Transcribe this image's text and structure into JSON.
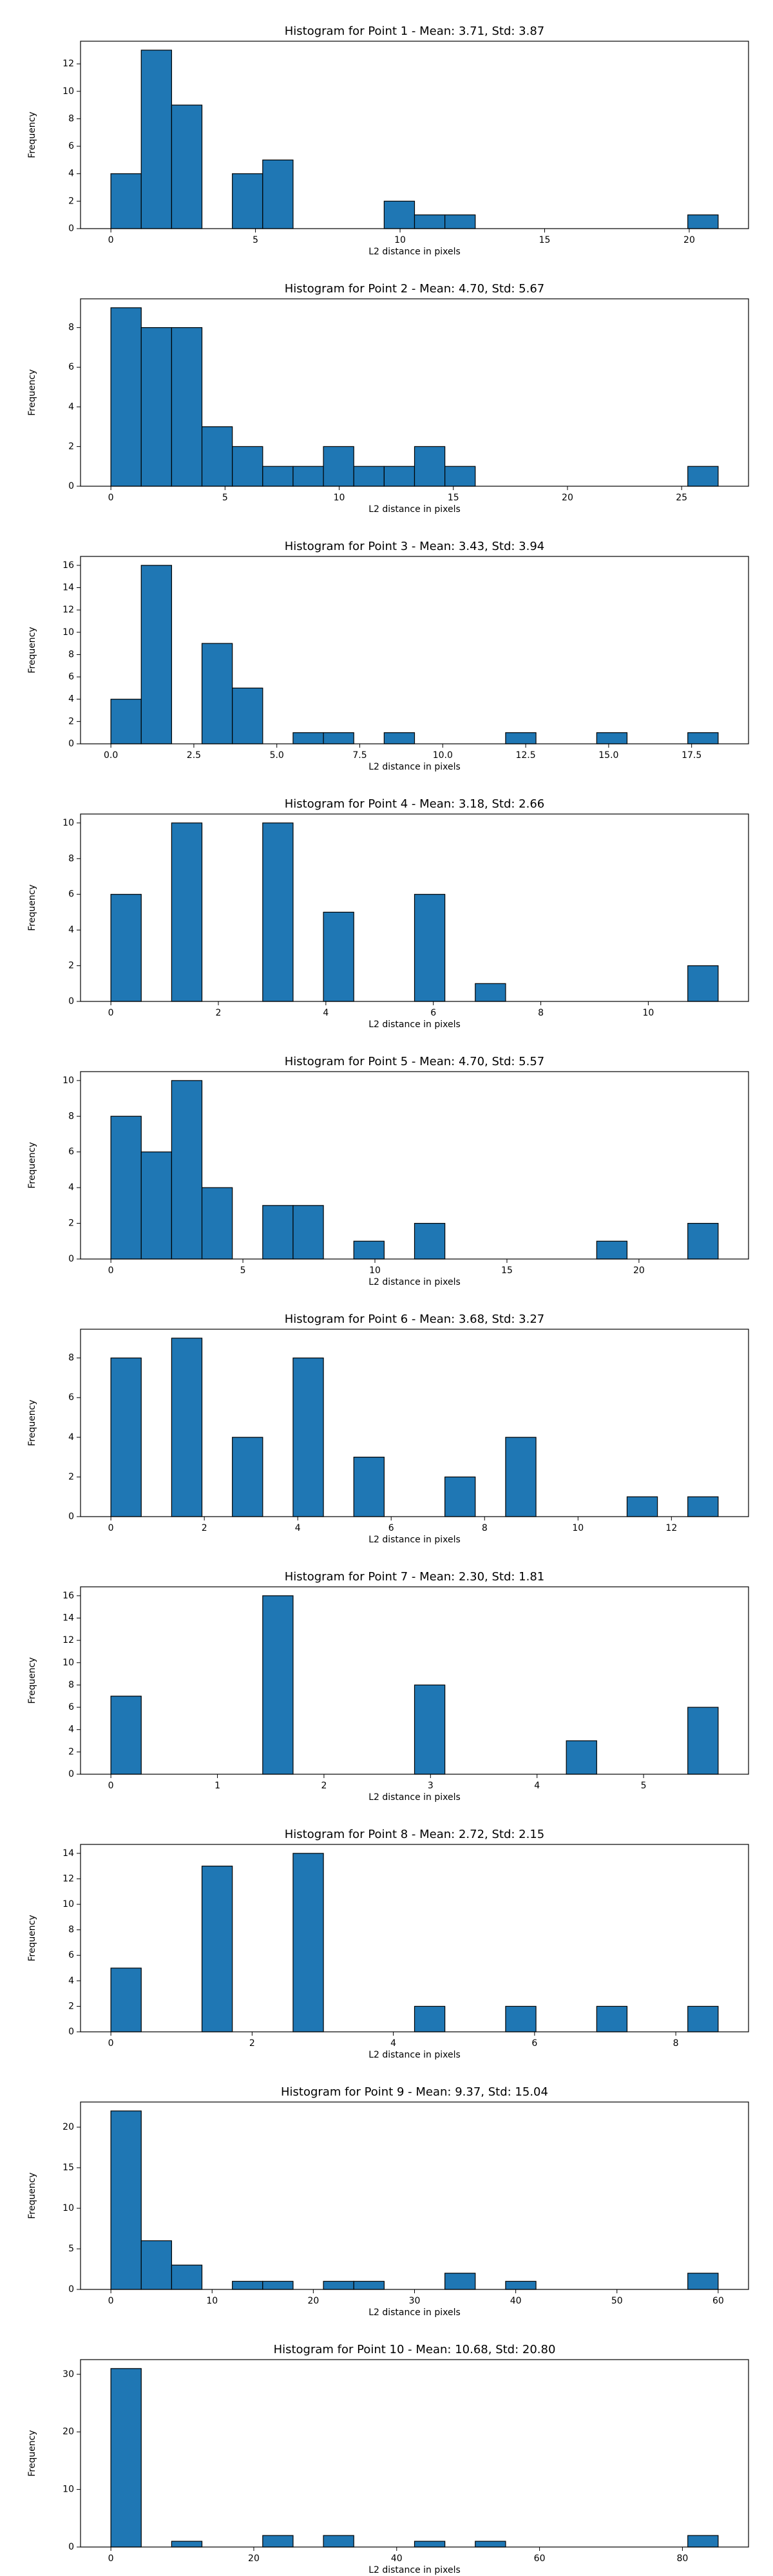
{
  "chart_data": [
    {
      "type": "histogram",
      "title": "Histogram for Point 1 - Mean: 3.71, Std: 3.87",
      "xlabel": "L2 distance in pixels",
      "ylabel": "Frequency",
      "color": "#1f77b4",
      "edgecolor": "#000000",
      "bins": [
        0,
        1.05,
        2.1,
        3.15,
        4.2,
        5.25,
        6.3,
        7.35,
        8.4,
        9.45,
        10.5,
        11.55,
        12.6,
        13.65,
        14.7,
        15.75,
        16.8,
        17.85,
        18.9,
        19.95,
        21
      ],
      "values": [
        4,
        13,
        9,
        0,
        4,
        5,
        0,
        0,
        0,
        2,
        1,
        1,
        0,
        0,
        0,
        0,
        0,
        0,
        0,
        1
      ],
      "xlim": [
        -1.05,
        22.05
      ],
      "ylim": [
        0,
        13.65
      ],
      "xticks": [
        0,
        5,
        10,
        15,
        20
      ],
      "yticks": [
        0,
        2,
        4,
        6,
        8,
        10,
        12
      ]
    },
    {
      "type": "histogram",
      "title": "Histogram for Point 2 - Mean: 4.70, Std: 5.67",
      "xlabel": "L2 distance in pixels",
      "ylabel": "Frequency",
      "color": "#1f77b4",
      "edgecolor": "#000000",
      "bins": [
        0,
        1.33,
        2.66,
        3.99,
        5.32,
        6.65,
        7.98,
        9.31,
        10.64,
        11.97,
        13.3,
        14.63,
        15.96,
        17.29,
        18.62,
        19.95,
        21.28,
        22.61,
        23.94,
        25.27,
        26.6
      ],
      "values": [
        9,
        8,
        8,
        3,
        2,
        1,
        1,
        2,
        1,
        1,
        2,
        1,
        0,
        0,
        0,
        0,
        0,
        0,
        0,
        1
      ],
      "xlim": [
        -1.33,
        27.93
      ],
      "ylim": [
        0,
        9.45
      ],
      "xticks": [
        0,
        5,
        10,
        15,
        20,
        25
      ],
      "yticks": [
        0,
        2,
        4,
        6,
        8
      ]
    },
    {
      "type": "histogram",
      "title": "Histogram for Point 3 - Mean: 3.43, Std: 3.94",
      "xlabel": "L2 distance in pixels",
      "ylabel": "Frequency",
      "color": "#1f77b4",
      "edgecolor": "#000000",
      "bins": [
        0,
        0.915,
        1.83,
        2.745,
        3.66,
        4.575,
        5.49,
        6.405,
        7.32,
        8.235,
        9.15,
        10.065,
        10.98,
        11.895,
        12.81,
        13.725,
        14.64,
        15.555,
        16.47,
        17.385,
        18.3
      ],
      "values": [
        4,
        16,
        0,
        9,
        5,
        0,
        1,
        1,
        0,
        1,
        0,
        0,
        0,
        1,
        0,
        0,
        1,
        0,
        0,
        1
      ],
      "xlim": [
        -0.915,
        19.215
      ],
      "ylim": [
        0,
        16.8
      ],
      "xticks": [
        {
          "value": 0,
          "label": "0.0"
        },
        2.5,
        {
          "value": 5,
          "label": "5.0"
        },
        7.5,
        {
          "value": 10,
          "label": "10.0"
        },
        12.5,
        {
          "value": 15,
          "label": "15.0"
        },
        17.5
      ],
      "yticks": [
        0,
        2,
        4,
        6,
        8,
        10,
        12,
        14,
        16
      ]
    },
    {
      "type": "histogram",
      "title": "Histogram for Point 4 - Mean: 3.18, Std: 2.66",
      "xlabel": "L2 distance in pixels",
      "ylabel": "Frequency",
      "color": "#1f77b4",
      "edgecolor": "#000000",
      "bins": [
        0,
        0.565,
        1.13,
        1.695,
        2.26,
        2.825,
        3.39,
        3.955,
        4.52,
        5.085,
        5.65,
        6.215,
        6.78,
        7.345,
        7.91,
        8.475,
        9.04,
        9.605,
        10.17,
        10.735,
        11.3
      ],
      "values": [
        6,
        0,
        10,
        0,
        0,
        10,
        0,
        5,
        0,
        0,
        6,
        0,
        1,
        0,
        0,
        0,
        0,
        0,
        0,
        2
      ],
      "xlim": [
        -0.565,
        11.865
      ],
      "ylim": [
        0,
        10.5
      ],
      "xticks": [
        0,
        2,
        4,
        6,
        8,
        10
      ],
      "yticks": [
        0,
        2,
        4,
        6,
        8,
        10
      ]
    },
    {
      "type": "histogram",
      "title": "Histogram for Point 5 - Mean: 4.70, Std: 5.57",
      "xlabel": "L2 distance in pixels",
      "ylabel": "Frequency",
      "color": "#1f77b4",
      "edgecolor": "#000000",
      "bins": [
        0,
        1.15,
        2.3,
        3.45,
        4.6,
        5.75,
        6.9,
        8.05,
        9.2,
        10.35,
        11.5,
        12.65,
        13.8,
        14.95,
        16.1,
        17.25,
        18.4,
        19.55,
        20.7,
        21.85,
        23
      ],
      "values": [
        8,
        6,
        10,
        4,
        0,
        3,
        3,
        0,
        1,
        0,
        2,
        0,
        0,
        0,
        0,
        0,
        1,
        0,
        0,
        2
      ],
      "xlim": [
        -1.15,
        24.15
      ],
      "ylim": [
        0,
        10.5
      ],
      "xticks": [
        0,
        5,
        10,
        15,
        20
      ],
      "yticks": [
        0,
        2,
        4,
        6,
        8,
        10
      ]
    },
    {
      "type": "histogram",
      "title": "Histogram for Point 6 - Mean: 3.68, Std: 3.27",
      "xlabel": "L2 distance in pixels",
      "ylabel": "Frequency",
      "color": "#1f77b4",
      "edgecolor": "#000000",
      "bins": [
        0,
        0.65,
        1.3,
        1.95,
        2.6,
        3.25,
        3.9,
        4.55,
        5.2,
        5.85,
        6.5,
        7.15,
        7.8,
        8.45,
        9.1,
        9.75,
        10.4,
        11.05,
        11.7,
        12.35,
        13
      ],
      "values": [
        8,
        0,
        9,
        0,
        4,
        0,
        8,
        0,
        3,
        0,
        0,
        2,
        0,
        4,
        0,
        0,
        0,
        1,
        0,
        1
      ],
      "xlim": [
        -0.65,
        13.65
      ],
      "ylim": [
        0,
        9.45
      ],
      "xticks": [
        0,
        2,
        4,
        6,
        8,
        10,
        12
      ],
      "yticks": [
        0,
        2,
        4,
        6,
        8
      ]
    },
    {
      "type": "histogram",
      "title": "Histogram for Point 7 - Mean: 2.30, Std: 1.81",
      "xlabel": "L2 distance in pixels",
      "ylabel": "Frequency",
      "color": "#1f77b4",
      "edgecolor": "#000000",
      "bins": [
        0,
        0.285,
        0.57,
        0.855,
        1.14,
        1.425,
        1.71,
        1.995,
        2.28,
        2.565,
        2.85,
        3.135,
        3.42,
        3.705,
        3.99,
        4.275,
        4.56,
        4.845,
        5.13,
        5.415,
        5.7
      ],
      "values": [
        7,
        0,
        0,
        0,
        0,
        16,
        0,
        0,
        0,
        0,
        8,
        0,
        0,
        0,
        0,
        3,
        0,
        0,
        0,
        6
      ],
      "xlim": [
        -0.285,
        5.985
      ],
      "ylim": [
        0,
        16.8
      ],
      "xticks": [
        0,
        1,
        2,
        3,
        4,
        5
      ],
      "yticks": [
        0,
        2,
        4,
        6,
        8,
        10,
        12,
        14,
        16
      ]
    },
    {
      "type": "histogram",
      "title": "Histogram for Point 8 - Mean: 2.72, Std: 2.15",
      "xlabel": "L2 distance in pixels",
      "ylabel": "Frequency",
      "color": "#1f77b4",
      "edgecolor": "#000000",
      "bins": [
        0,
        0.43,
        0.86,
        1.29,
        1.72,
        2.15,
        2.58,
        3.01,
        3.44,
        3.87,
        4.3,
        4.73,
        5.16,
        5.59,
        6.02,
        6.45,
        6.88,
        7.31,
        7.74,
        8.17,
        8.6
      ],
      "values": [
        5,
        0,
        0,
        13,
        0,
        0,
        14,
        0,
        0,
        0,
        2,
        0,
        0,
        2,
        0,
        0,
        2,
        0,
        0,
        2
      ],
      "xlim": [
        -0.43,
        9.03
      ],
      "ylim": [
        0,
        14.7
      ],
      "xticks": [
        0,
        2,
        4,
        6,
        8
      ],
      "yticks": [
        0,
        2,
        4,
        6,
        8,
        10,
        12,
        14
      ]
    },
    {
      "type": "histogram",
      "title": "Histogram for Point 9 - Mean: 9.37, Std: 15.04",
      "xlabel": "L2 distance in pixels",
      "ylabel": "Frequency",
      "color": "#1f77b4",
      "edgecolor": "#000000",
      "bins": [
        0,
        3,
        6,
        9,
        12,
        15,
        18,
        21,
        24,
        27,
        30,
        33,
        36,
        39,
        42,
        45,
        48,
        51,
        54,
        57,
        60
      ],
      "values": [
        22,
        6,
        3,
        0,
        1,
        1,
        0,
        1,
        1,
        0,
        0,
        2,
        0,
        1,
        0,
        0,
        0,
        0,
        0,
        2
      ],
      "xlim": [
        -3,
        63
      ],
      "ylim": [
        0,
        23.1
      ],
      "xticks": [
        0,
        10,
        20,
        30,
        40,
        50,
        60
      ],
      "yticks": [
        0,
        5,
        10,
        15,
        20
      ]
    },
    {
      "type": "histogram",
      "title": "Histogram for Point 10 - Mean: 10.68, Std: 20.80",
      "xlabel": "L2 distance in pixels",
      "ylabel": "Frequency",
      "color": "#1f77b4",
      "edgecolor": "#000000",
      "bins": [
        0,
        4.25,
        8.5,
        12.75,
        17,
        21.25,
        25.5,
        29.75,
        34,
        38.25,
        42.5,
        46.75,
        51,
        55.25,
        59.5,
        63.75,
        68,
        72.25,
        76.5,
        80.75,
        85
      ],
      "values": [
        31,
        0,
        1,
        0,
        0,
        2,
        0,
        2,
        0,
        0,
        1,
        0,
        1,
        0,
        0,
        0,
        0,
        0,
        0,
        2
      ],
      "xlim": [
        -4.25,
        89.25
      ],
      "ylim": [
        0,
        32.55
      ],
      "xticks": [
        0,
        20,
        40,
        60,
        80
      ],
      "yticks": [
        0,
        10,
        20,
        30
      ]
    }
  ]
}
